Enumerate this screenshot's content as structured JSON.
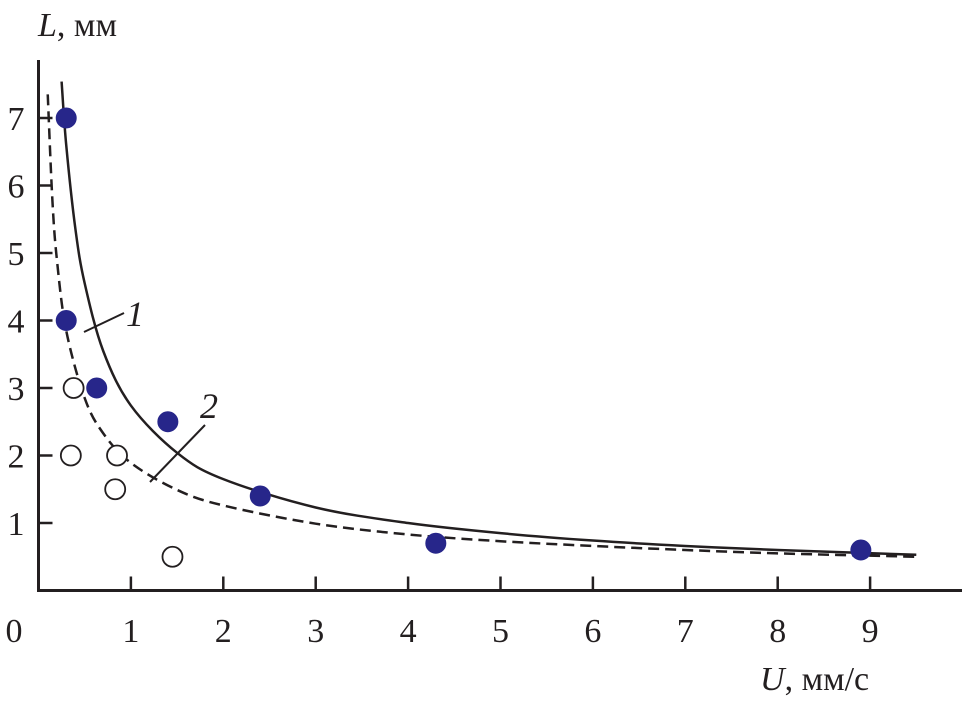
{
  "chart_data": {
    "type": "scatter",
    "title": "",
    "xlabel": {
      "var": "U",
      "unit": ", мм/с"
    },
    "ylabel": {
      "var": "L",
      "unit": ", мм"
    },
    "xlim": [
      0,
      10
    ],
    "ylim": [
      0,
      8
    ],
    "x_ticks": [
      "0",
      "1",
      "2",
      "3",
      "4",
      "5",
      "6",
      "7",
      "8",
      "9"
    ],
    "y_ticks": [
      "1",
      "2",
      "3",
      "4",
      "5",
      "6",
      "7"
    ],
    "grid": false,
    "colors": {
      "filled": "#27268a",
      "axis": "#231f20"
    },
    "series": [
      {
        "kind": "points-filled",
        "x": [
          0.3,
          0.3,
          0.63,
          1.4,
          2.4,
          4.3,
          8.9
        ],
        "y": [
          7.0,
          4.0,
          3.0,
          2.5,
          1.4,
          0.7,
          0.6
        ]
      },
      {
        "kind": "points-open",
        "x": [
          0.38,
          0.35,
          0.85,
          0.83,
          1.45
        ],
        "y": [
          3.0,
          2.0,
          2.0,
          1.5,
          0.5
        ]
      },
      {
        "kind": "curve-solid",
        "label": "1",
        "x": [
          0.25,
          0.3,
          0.4,
          0.5,
          0.7,
          1,
          1.5,
          2,
          3,
          4,
          5,
          6,
          7,
          8,
          9.5
        ],
        "y": [
          7.54,
          6.6,
          5.35,
          4.55,
          3.55,
          2.74,
          2.04,
          1.65,
          1.23,
          1.0,
          0.85,
          0.74,
          0.66,
          0.6,
          0.53
        ]
      },
      {
        "kind": "curve-dashed",
        "label": "2",
        "x": [
          0.1,
          0.15,
          0.2,
          0.3,
          0.5,
          0.7,
          1,
          1.5,
          2,
          3,
          4,
          5,
          6,
          7,
          8,
          9.5
        ],
        "y": [
          7.35,
          5.79,
          4.89,
          3.85,
          2.85,
          2.33,
          1.89,
          1.49,
          1.26,
          0.99,
          0.83,
          0.73,
          0.66,
          0.6,
          0.55,
          0.5
        ]
      }
    ]
  }
}
